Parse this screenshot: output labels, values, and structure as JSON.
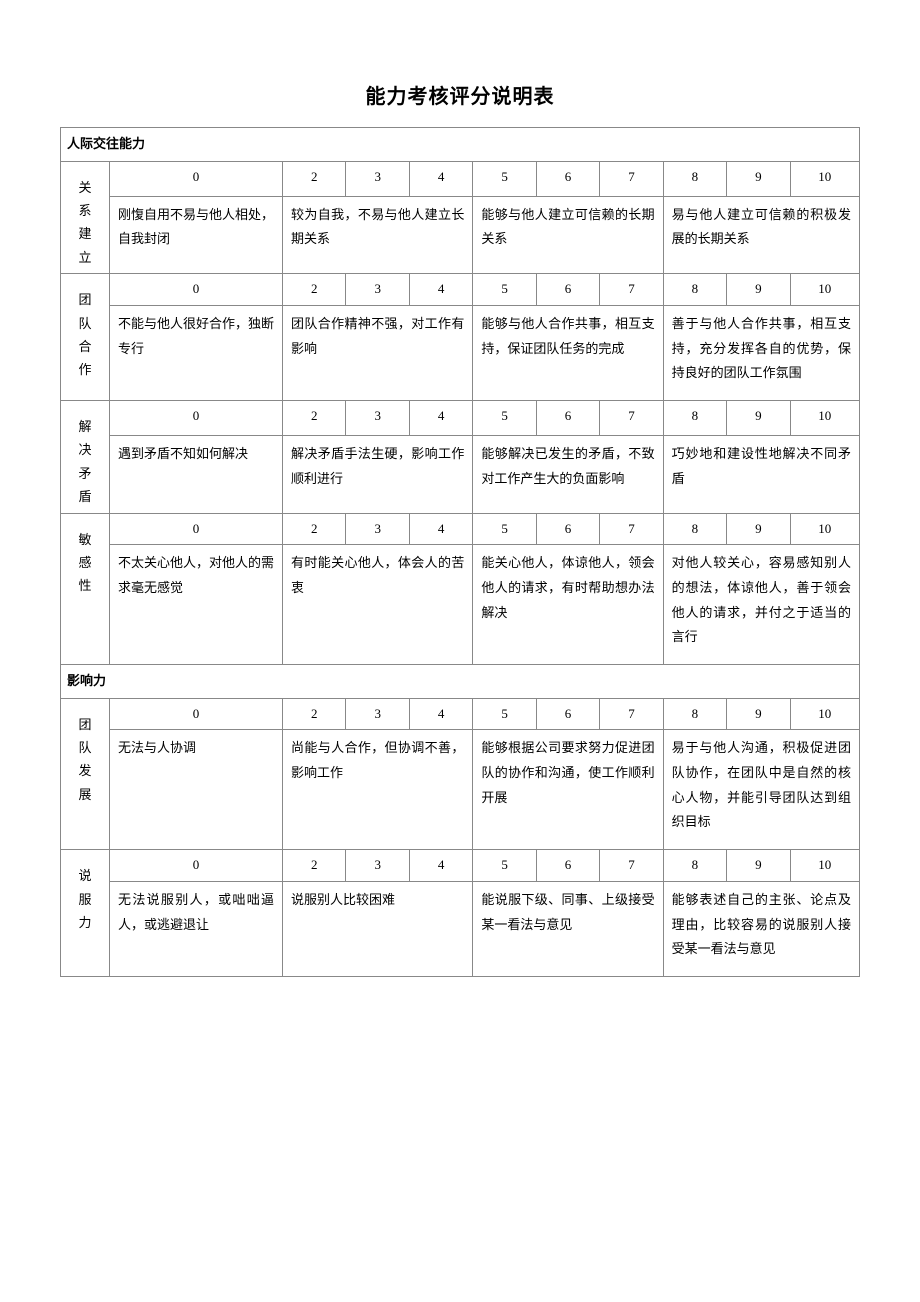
{
  "title": "能力考核评分说明表",
  "colors": {
    "border": "#888888",
    "bg": "#ffffff",
    "text": "#000000"
  },
  "score_groups": [
    {
      "labels": [
        "0"
      ]
    },
    {
      "labels": [
        "2",
        "3",
        "4"
      ]
    },
    {
      "labels": [
        "5",
        "6",
        "7"
      ]
    },
    {
      "labels": [
        "8",
        "9",
        "10"
      ]
    }
  ],
  "sections": [
    {
      "name": "人际交往能力",
      "rows": [
        {
          "label": "关系建立",
          "levels": [
            "刚愎自用不易与他人相处，自我封闭",
            "较为自我，不易与他人建立长期关系",
            "能够与他人建立可信赖的长期关系",
            "易与他人建立可信赖的积极发展的长期关系"
          ]
        },
        {
          "label": "团队合作",
          "levels": [
            "不能与他人很好合作，独断专行",
            "团队合作精神不强，对工作有影响",
            "能够与他人合作共事，相互支持，保证团队任务的完成",
            "善于与他人合作共事，相互支持，充分发挥各自的优势，保持良好的团队工作氛围"
          ]
        },
        {
          "label": "解决矛盾",
          "levels": [
            "遇到矛盾不知如何解决",
            "解决矛盾手法生硬，影响工作顺利进行",
            "能够解决已发生的矛盾，不致对工作产生大的负面影响",
            "巧妙地和建设性地解决不同矛盾"
          ]
        },
        {
          "label": "敏感性",
          "levels": [
            "不太关心他人，对他人的需求毫无感觉",
            "有时能关心他人，体会人的苦衷",
            "能关心他人，体谅他人，领会他人的请求，有时帮助想办法解决",
            "对他人较关心，容易感知别人的想法，体谅他人，善于领会他人的请求，并付之于适当的言行"
          ]
        }
      ]
    },
    {
      "name": "影响力",
      "rows": [
        {
          "label": "团队发展",
          "levels": [
            "无法与人协调",
            "尚能与人合作，但协调不善，影响工作",
            "能够根据公司要求努力促进团队的协作和沟通，使工作顺利开展",
            "易于与他人沟通，积极促进团队协作，在团队中是自然的核心人物，并能引导团队达到组织目标"
          ]
        },
        {
          "label": "说服力",
          "levels": [
            "无法说服别人，或咄咄逼人，或逃避退让",
            "说服别人比较困难",
            "能说服下级、同事、上级接受某一看法与意见",
            "能够表述自己的主张、论点及理由，比较容易的说服别人接受某一看法与意见"
          ]
        }
      ]
    }
  ]
}
